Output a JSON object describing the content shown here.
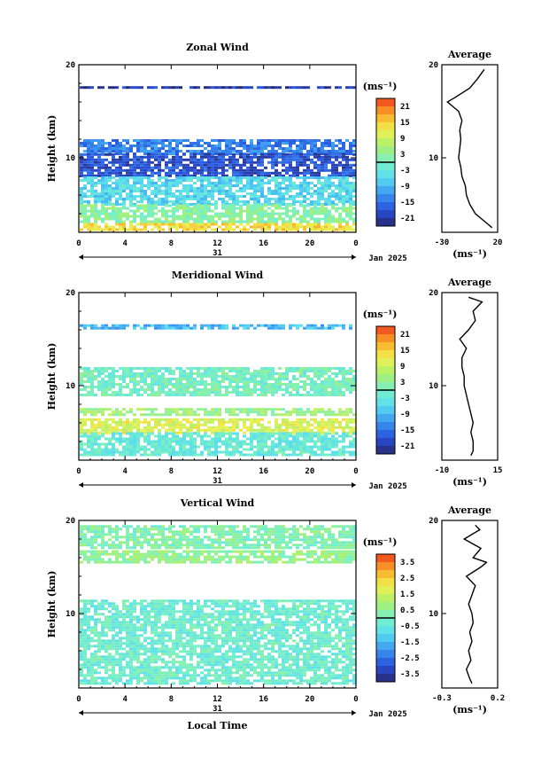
{
  "figure": {
    "xlabel": "Local Time",
    "date_label": "Jan 2025",
    "day_label": "31"
  },
  "chart_data": [
    {
      "type": "heatmap",
      "title": "Zonal Wind",
      "ylabel": "Height (km)",
      "xlabel": "Local Time",
      "xticks": [
        "0",
        "4",
        "8",
        "12",
        "16",
        "20",
        "0"
      ],
      "ylim": [
        2,
        20
      ],
      "yticks": [
        "10",
        "20"
      ],
      "xlim": [
        0,
        24
      ],
      "colorbar": {
        "unit": "(ms⁻¹)",
        "ticks": [
          "21",
          "15",
          "9",
          "3",
          "-3",
          "-9",
          "-15",
          "-21"
        ]
      },
      "layers": [
        {
          "z": [
            17.5,
            17.7
          ],
          "value": -18
        },
        {
          "z": [
            10.5,
            12.0
          ],
          "value": -12
        },
        {
          "z": [
            8.0,
            10.5
          ],
          "value": -16
        },
        {
          "z": [
            5.0,
            8.0
          ],
          "value": -5
        },
        {
          "z": [
            3.0,
            5.0
          ],
          "value": 2
        },
        {
          "z": [
            2.3,
            3.0
          ],
          "value": 12
        }
      ],
      "profile": {
        "title": "Average",
        "xlim": [
          -30,
          20
        ],
        "xticks": [
          "-30",
          "20"
        ],
        "xunit": "(ms⁻¹)",
        "z": [
          2.5,
          3,
          4,
          5,
          6,
          7,
          8,
          9,
          10,
          11,
          12,
          13,
          14,
          15,
          16,
          16.5,
          17.5,
          18.5,
          19.5
        ],
        "values": [
          15,
          10,
          0,
          -5,
          -8,
          -9,
          -12,
          -13,
          -15,
          -14,
          -13,
          -14,
          -12,
          -15,
          -25,
          -18,
          -5,
          2,
          8
        ]
      }
    },
    {
      "type": "heatmap",
      "title": "Meridional Wind",
      "ylabel": "Height (km)",
      "xlabel": "Local Time",
      "xticks": [
        "0",
        "4",
        "8",
        "12",
        "16",
        "20",
        "0"
      ],
      "ylim": [
        2,
        20
      ],
      "yticks": [
        "10",
        "20"
      ],
      "xlim": [
        0,
        24
      ],
      "colorbar": {
        "unit": "(ms⁻¹)",
        "ticks": [
          "21",
          "15",
          "9",
          "3",
          "-3",
          "-9",
          "-15",
          "-21"
        ]
      },
      "layers": [
        {
          "z": [
            16.2,
            16.6
          ],
          "value": -8
        },
        {
          "z": [
            9.0,
            12.0
          ],
          "value": 0
        },
        {
          "z": [
            6.8,
            7.6
          ],
          "value": 4
        },
        {
          "z": [
            5.0,
            6.5
          ],
          "value": 9
        },
        {
          "z": [
            2.5,
            5.0
          ],
          "value": -2
        }
      ],
      "profile": {
        "title": "Average",
        "xlim": [
          -10,
          15
        ],
        "xticks": [
          "-10",
          "15"
        ],
        "xunit": "(ms⁻¹)",
        "z": [
          2.5,
          3,
          4,
          5,
          6,
          7,
          8,
          9,
          10,
          11,
          12,
          13,
          14,
          15,
          16,
          17,
          18,
          19,
          19.5
        ],
        "values": [
          3,
          4,
          4,
          3,
          4,
          3,
          2,
          1,
          0,
          0,
          -1,
          -1,
          1,
          -2,
          2,
          5,
          4,
          8,
          2
        ]
      }
    },
    {
      "type": "heatmap",
      "title": "Vertical Wind",
      "ylabel": "Height (km)",
      "xlabel": "Local Time",
      "xticks": [
        "0",
        "4",
        "8",
        "12",
        "16",
        "20",
        "0"
      ],
      "ylim": [
        2,
        20
      ],
      "yticks": [
        "10",
        "20"
      ],
      "xlim": [
        0,
        24
      ],
      "colorbar": {
        "unit": "(ms⁻¹)",
        "ticks": [
          "3.5",
          "2.5",
          "1.5",
          "0.5",
          "-0.5",
          "-1.5",
          "-2.5",
          "-3.5"
        ]
      },
      "layers": [
        {
          "z": [
            17.0,
            19.5
          ],
          "value": 0.2
        },
        {
          "z": [
            15.5,
            16.8
          ],
          "value": 0.5
        },
        {
          "z": [
            2.5,
            11.5
          ],
          "value": -0.2
        }
      ],
      "profile": {
        "title": "Average",
        "xlim": [
          -0.3,
          0.2
        ],
        "xticks": [
          "-0.3",
          "0.2"
        ],
        "xunit": "(ms⁻¹)",
        "z": [
          2.5,
          3,
          4,
          5,
          6,
          7,
          8,
          9,
          10,
          11,
          12,
          13,
          14,
          15,
          15.5,
          16,
          17,
          18,
          19,
          19.5
        ],
        "values": [
          -0.03,
          -0.05,
          -0.08,
          -0.04,
          -0.06,
          -0.03,
          -0.05,
          -0.02,
          -0.03,
          -0.06,
          -0.03,
          0.0,
          -0.08,
          0.05,
          0.1,
          -0.02,
          0.05,
          -0.1,
          0.04,
          0.0
        ]
      }
    }
  ]
}
